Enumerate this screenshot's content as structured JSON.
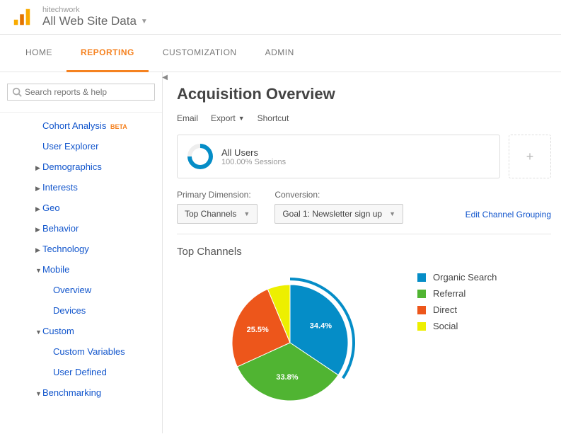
{
  "header": {
    "account": "hitechwork",
    "property": "All Web Site Data"
  },
  "tabs": [
    {
      "id": "home",
      "label": "HOME",
      "active": false
    },
    {
      "id": "reporting",
      "label": "REPORTING",
      "active": true
    },
    {
      "id": "customization",
      "label": "CUSTOMIZATION",
      "active": false
    },
    {
      "id": "admin",
      "label": "ADMIN",
      "active": false
    }
  ],
  "search": {
    "placeholder": "Search reports & help"
  },
  "sidebar": {
    "cohort": "Cohort Analysis",
    "beta": "BETA",
    "user_explorer": "User Explorer",
    "demographics": "Demographics",
    "interests": "Interests",
    "geo": "Geo",
    "behavior": "Behavior",
    "technology": "Technology",
    "mobile": "Mobile",
    "mobile_overview": "Overview",
    "mobile_devices": "Devices",
    "custom": "Custom",
    "custom_vars": "Custom Variables",
    "user_defined": "User Defined",
    "benchmarking": "Benchmarking"
  },
  "page": {
    "title": "Acquisition Overview",
    "toolbar": {
      "email": "Email",
      "export": "Export",
      "shortcut": "Shortcut"
    },
    "segment": {
      "title": "All Users",
      "sub": "100.00% Sessions",
      "add": "+"
    },
    "dim": {
      "primary_label": "Primary Dimension:",
      "primary_value": "Top Channels",
      "conversion_label": "Conversion:",
      "conversion_value": "Goal 1: Newsletter sign up",
      "edit_link": "Edit Channel Grouping"
    },
    "chart": {
      "title": "Top Channels",
      "type": "pie",
      "background": "#ffffff",
      "slices": [
        {
          "label": "Organic Search",
          "value": 34.4,
          "color": "#058dc7",
          "text": "34.4%"
        },
        {
          "label": "Referral",
          "value": 33.8,
          "color": "#50b432",
          "text": "33.8%"
        },
        {
          "label": "Direct",
          "value": 25.5,
          "color": "#ed561b",
          "text": "25.5%"
        },
        {
          "label": "Social",
          "value": 6.3,
          "color": "#edef00",
          "text": ""
        }
      ],
      "highlight_arc_color": "#058dc7",
      "label_color": "#ffffff",
      "label_fontsize": 11
    }
  }
}
